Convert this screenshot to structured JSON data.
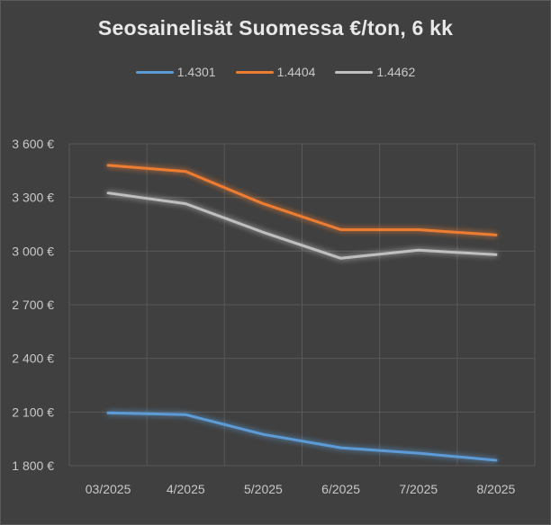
{
  "chart_data": {
    "type": "line",
    "title": "Seosainelisät Suomessa €/ton, 6 kk",
    "categories": [
      "03/2025",
      "4/2025",
      "5/2025",
      "6/2025",
      "7/2025",
      "8/2025"
    ],
    "ylim": [
      1800,
      3600
    ],
    "y_ticks": [
      1800,
      2100,
      2400,
      2700,
      3000,
      3300,
      3600
    ],
    "y_tick_labels": [
      "1 800 €",
      "2 100 €",
      "2 400 €",
      "2 700 €",
      "3 000 €",
      "3 300 €",
      "3 600 €"
    ],
    "grid": true,
    "legend_position": "top",
    "series": [
      {
        "name": "1.4301",
        "color": "#5b9bd5",
        "values": [
          2095,
          2085,
          1975,
          1900,
          1870,
          1830
        ]
      },
      {
        "name": "1.4404",
        "color": "#ed7d31",
        "values": [
          3480,
          3445,
          3265,
          3120,
          3120,
          3090
        ]
      },
      {
        "name": "1.4462",
        "color": "#bfbfbf",
        "values": [
          3325,
          3265,
          3105,
          2960,
          3005,
          2980
        ]
      }
    ]
  }
}
